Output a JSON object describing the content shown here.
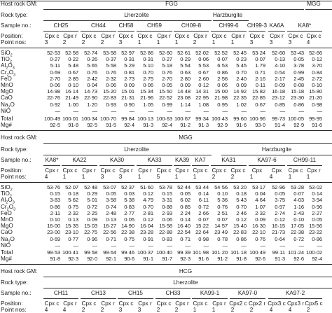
{
  "rowlabels": {
    "host": "Host rock GM:",
    "rock": "Rock type:",
    "sample": "Sample no.:",
    "position": "Position:",
    "point": "Point nos:",
    "total": "Total",
    "mg": "Mg#"
  },
  "oxides": [
    {
      "base": "SiO",
      "sub": "2",
      "tail": ""
    },
    {
      "base": "TiO",
      "sub": "2",
      "tail": ""
    },
    {
      "base": "Al",
      "sub": "2",
      "tail": "O",
      "sub2": "3"
    },
    {
      "base": "Cr",
      "sub": "2",
      "tail": "O",
      "sub2": "3"
    },
    {
      "base": "FeO",
      "sub": "",
      "tail": ""
    },
    {
      "base": "MnO",
      "sub": "",
      "tail": ""
    },
    {
      "base": "MgO",
      "sub": "",
      "tail": ""
    },
    {
      "base": "CaO",
      "sub": "",
      "tail": ""
    },
    {
      "base": "Na",
      "sub": "2",
      "tail": "O"
    },
    {
      "base": "NiO",
      "sub": "",
      "tail": ""
    }
  ],
  "section1": {
    "host_groups": [
      "FGG",
      "MGG"
    ],
    "rock_groups": [
      "Lherzolite",
      "Harzburgite"
    ],
    "samples": [
      "CH25",
      "CH44",
      "CH58",
      "CH59",
      "CH09-8",
      "CH99-6",
      "CH99-3",
      "KA6A",
      "KA8*"
    ],
    "positions": [
      "Cpx c",
      "Cpx r",
      "Cpx c",
      "Cpx r",
      "Cpx c",
      "Cpx c",
      "Cpx r",
      "Cpx c",
      "Cpx r",
      "Cpx c",
      "Cpx r",
      "Cpx c",
      "Cpx r",
      "Cpx c",
      "Cpx c"
    ],
    "points": [
      "3",
      "2",
      "2",
      "2",
      "3",
      "1",
      "1",
      "1",
      "2",
      "1",
      "1",
      "3",
      "3",
      "3",
      "4"
    ],
    "rows": [
      [
        "52·53",
        "52·58",
        "52·74",
        "53·58",
        "52·97",
        "52·86",
        "52·60",
        "52·61",
        "52·02",
        "52·52",
        "52·45",
        "53·24",
        "52·60",
        "53·43",
        "52·66"
      ],
      [
        "0·27",
        "0·22",
        "0·26",
        "0·37",
        "0·31",
        "0·31",
        "0·27",
        "0·29",
        "0·06",
        "0·07",
        "0·23",
        "0·07",
        "0·13",
        "0·05",
        "0·12"
      ],
      [
        "5·11",
        "5·48",
        "5·65",
        "5·58",
        "5·29",
        "5·10",
        "5·18",
        "5·54",
        "5·53",
        "6·53",
        "5·45",
        "1·79",
        "4·10",
        "3·78",
        "3·70"
      ],
      [
        "0·69",
        "0·67",
        "0·76",
        "0·76",
        "0·81",
        "0·70",
        "0·76",
        "0·63",
        "0·67",
        "0·86",
        "0·70",
        "0·71",
        "0·54",
        "0·99",
        "0·84"
      ],
      [
        "2·70",
        "2·85",
        "2·42",
        "2·32",
        "2·73",
        "2·75",
        "2·70",
        "2·80",
        "2·60",
        "2·56",
        "2·40",
        "2·16",
        "2·17",
        "2·45",
        "2·72"
      ],
      [
        "0·06",
        "0·10",
        "0·04",
        "0·06",
        "0·09",
        "0·06",
        "0·05",
        "0·09",
        "0·12",
        "0·05",
        "0·09",
        "0·11",
        "0·09",
        "0·08",
        "0·10"
      ],
      [
        "14·98",
        "16·14",
        "14·73",
        "15·20",
        "15·01",
        "15·34",
        "15·50",
        "14·48",
        "14·31",
        "15·00",
        "14·92",
        "15·82",
        "16·18",
        "15·18",
        "15·80"
      ],
      [
        "22·76",
        "21·49",
        "22·90",
        "22·83",
        "21·31",
        "21·96",
        "22·52",
        "23·08",
        "22·95",
        "21·98",
        "22·35",
        "22·85",
        "23·12",
        "23·30",
        "21·20"
      ],
      [
        "0·92",
        "1·00",
        "1·20",
        "0·93",
        "0·90",
        "1·05",
        "0·99",
        "1·14",
        "1·08",
        "0·95",
        "1·02",
        "0·67",
        "0·85",
        "0·86",
        "0·98"
      ],
      [
        "—",
        "—",
        "—",
        "—",
        "—",
        "—",
        "—",
        "—",
        "—",
        "—",
        "—",
        "—",
        "—",
        "—",
        "—"
      ]
    ],
    "totals": [
      "100·49",
      "100·01",
      "100·34",
      "100·70",
      "99·84",
      "100·13",
      "100·63",
      "100·67",
      "99·34",
      "100·43",
      "99·60",
      "100·96",
      "99·73",
      "100·05",
      "99·95"
    ],
    "mg": [
      "92·5",
      "91·8",
      "92·5",
      "91·5",
      "92·4",
      "91·3",
      "92·4",
      "91·2",
      "91·3",
      "92·9",
      "91·6",
      "93·0",
      "91·4",
      "92·9",
      "91·6"
    ]
  },
  "section2": {
    "host": "MGG",
    "rock_groups": [
      "Lherzolite",
      "Harzburgite"
    ],
    "samples": [
      "KA8*",
      "KA22",
      "KA30",
      "KA33",
      "KA39",
      "KA7",
      "KA31",
      "KA97-6",
      "CH99-11"
    ],
    "positions": [
      "Cpx r",
      "Cpx c",
      "Cpx r",
      "Cpx c",
      "Cpx r",
      "Cpx r",
      "Cpx c",
      "Cpx r",
      "Cpx c",
      "Cpx c",
      "Cpx c",
      "Cpx",
      "Cpx",
      "Cpx c",
      "Cpx r"
    ],
    "points": [
      "4",
      "1",
      "1",
      "3",
      "3",
      "1",
      "5",
      "1",
      "1",
      "2",
      "2",
      "1",
      "4",
      "1",
      "1"
    ],
    "rows": [
      [
        "53·76",
        "52·07",
        "52·48",
        "53·07",
        "52·37",
        "51·60",
        "53·78",
        "52·44",
        "53·44",
        "54·56",
        "53·20",
        "53·17",
        "52·96",
        "53·28",
        "53·02"
      ],
      [
        "0·15",
        "0·18",
        "0·29",
        "0·05",
        "0·03",
        "0·12",
        "0·15",
        "0·05",
        "0·14",
        "0·10",
        "0·18",
        "0·04",
        "0·05",
        "0·07",
        "0·14"
      ],
      [
        "3·83",
        "5·62",
        "5·01",
        "3·58",
        "5·38",
        "4·79",
        "3·31",
        "6·02",
        "6·11",
        "5·36",
        "5·43",
        "4·64",
        "3·75",
        "4·03",
        "3·94"
      ],
      [
        "0·86",
        "0·75",
        "0·72",
        "0·74",
        "0·83",
        "0·70",
        "0·88",
        "0·85",
        "0·72",
        "0·76",
        "0·70",
        "1·07",
        "0·97",
        "1·16",
        "0·96"
      ],
      [
        "2·11",
        "2·32",
        "2·25",
        "2·48",
        "2·77",
        "2·81",
        "2·93",
        "2·24",
        "2·66",
        "2·51",
        "2·46",
        "2·32",
        "2·74",
        "2·43",
        "2·27"
      ],
      [
        "0·10",
        "0·13",
        "0·09",
        "0·13",
        "0·05",
        "0·12",
        "0·06",
        "0·14",
        "0·07",
        "0·07",
        "0·12",
        "0·09",
        "0·12",
        "0·10",
        "0·05"
      ],
      [
        "16·00",
        "15·35",
        "15·03",
        "16·27",
        "14·90",
        "16·04",
        "15·58",
        "16·40",
        "15·22",
        "14·57",
        "15·40",
        "16·30",
        "16·15",
        "17·05",
        "15·56"
      ],
      [
        "23·00",
        "23·10",
        "22·75",
        "22·56",
        "22·38",
        "23·28",
        "22·88",
        "22·54",
        "22·64",
        "23·49",
        "22·83",
        "22·10",
        "21·73",
        "22·38",
        "23·22"
      ],
      [
        "0·69",
        "0·77",
        "0·96",
        "0·71",
        "0·75",
        "0·91",
        "0·83",
        "0·71",
        "0·98",
        "0·78",
        "0·86",
        "0·76",
        "0·64",
        "0·72",
        "0·86"
      ],
      [
        "—",
        "—",
        "—",
        "—",
        "—",
        "—",
        "—",
        "—",
        "—",
        "—",
        "—",
        "—",
        "—",
        "—",
        "—"
      ]
    ],
    "totals": [
      "99·53",
      "100·41",
      "99·58",
      "99·64",
      "99·46",
      "100·37",
      "100·40",
      "99·39",
      "101·98",
      "101·20",
      "101·18",
      "100·49",
      "99·11",
      "101·24",
      "100·02"
    ],
    "mg": [
      "91·8",
      "92·3",
      "92·0",
      "92·1",
      "90·6",
      "91·1",
      "91·7",
      "92·3",
      "91·6",
      "91·2",
      "91·8",
      "92·6",
      "91·3",
      "92·6",
      "92·4"
    ]
  },
  "section3": {
    "host": "HCG",
    "rock": "Lherzolite",
    "samples": [
      "CH11",
      "CH13",
      "CH15",
      "CH33",
      "KA99-1",
      "KA97-0",
      "KA97-2"
    ],
    "positions": [
      "Cpx c",
      "Cpx r",
      "Cpx c",
      "Cpx r",
      "Cpx c",
      "Cpx r",
      "Cpx c",
      "Cpx r",
      "Cpx c",
      "Cpx r",
      "Cpx2 c",
      "Cpx2 r",
      "Cpx3 c",
      "Cpx3 r",
      "Cpx5 c"
    ],
    "points": [
      "4",
      "4",
      "2",
      "2",
      "3",
      "3",
      "2",
      "2",
      "1",
      "1",
      "2",
      "2",
      "4",
      "4",
      "2"
    ]
  }
}
